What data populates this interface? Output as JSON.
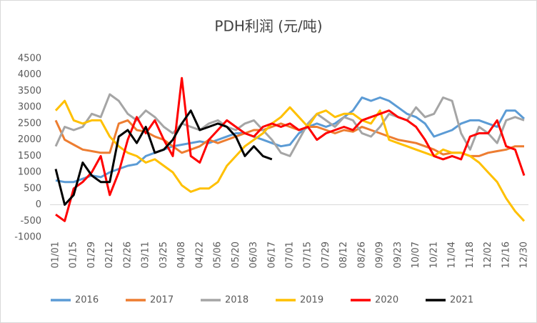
{
  "chart_data": {
    "type": "line",
    "title": "PDH利润 (元/吨)",
    "categories": [
      "01/01",
      null,
      "01/15",
      null,
      "01/29",
      null,
      "02/12",
      null,
      "02/26",
      null,
      "03/11",
      null,
      "03/25",
      null,
      "04/08",
      null,
      "04/22",
      null,
      "05/06",
      null,
      "05/20",
      null,
      "06/03",
      null,
      "06/17",
      null,
      "07/01",
      null,
      "07/15",
      null,
      "07/29",
      null,
      "08/12",
      null,
      "08/26",
      null,
      "09/09",
      null,
      "09/23",
      null,
      "10/07",
      null,
      "10/21",
      null,
      "11/04",
      null,
      "11/18",
      null,
      "12/02",
      null,
      "12/16",
      null,
      "12/30"
    ],
    "series": [
      {
        "name": "2016",
        "color": "#5b9bd5",
        "values": [
          750,
          700,
          700,
          800,
          900,
          850,
          1000,
          1100,
          1200,
          1250,
          1500,
          1600,
          1700,
          1800,
          1850,
          1900,
          1950,
          1900,
          2000,
          2100,
          2200,
          2200,
          2100,
          2000,
          1900,
          1800,
          1850,
          2200,
          2400,
          2500,
          2400,
          2500,
          2700,
          2900,
          3300,
          3200,
          3300,
          3200,
          3000,
          2800,
          2700,
          2500,
          2100,
          2200,
          2300,
          2500,
          2600,
          2600,
          2500,
          2400,
          2900,
          2900,
          2650
        ]
      },
      {
        "name": "2017",
        "color": "#ed7d31",
        "values": [
          2600,
          2000,
          1850,
          1700,
          1650,
          1600,
          1600,
          2500,
          2600,
          2300,
          2250,
          2100,
          2000,
          1800,
          1600,
          1700,
          1800,
          2000,
          1900,
          2000,
          2100,
          2200,
          2300,
          2300,
          2400,
          2500,
          2400,
          2300,
          2400,
          2400,
          2300,
          2200,
          2300,
          2250,
          2400,
          2300,
          2200,
          2100,
          2000,
          1950,
          1900,
          1800,
          1700,
          1550,
          1600,
          1600,
          1500,
          1500,
          1600,
          1650,
          1700,
          1800,
          1800
        ]
      },
      {
        "name": "2018",
        "color": "#a5a5a5",
        "values": [
          1800,
          2400,
          2300,
          2400,
          2800,
          2700,
          3400,
          3200,
          2800,
          2600,
          2900,
          2700,
          2400,
          2200,
          2500,
          2400,
          2300,
          2500,
          2600,
          2400,
          2300,
          2500,
          2600,
          2300,
          2000,
          1600,
          1500,
          2000,
          2500,
          2800,
          2600,
          2400,
          2700,
          2600,
          2200,
          2100,
          2400,
          2800,
          2700,
          2600,
          3000,
          2700,
          2800,
          3300,
          3200,
          2200,
          1700,
          2400,
          2200,
          1900,
          2600,
          2700,
          2600
        ]
      },
      {
        "name": "2019",
        "color": "#ffc000",
        "values": [
          2900,
          3200,
          2600,
          2500,
          2600,
          2600,
          2100,
          1800,
          1600,
          1500,
          1300,
          1400,
          1200,
          1000,
          600,
          400,
          500,
          500,
          700,
          1200,
          1500,
          1800,
          2000,
          2200,
          2500,
          2700,
          3000,
          2700,
          2400,
          2800,
          2900,
          2700,
          2800,
          2800,
          2600,
          2500,
          2900,
          2000,
          1900,
          1800,
          1700,
          1600,
          1500,
          1700,
          1600,
          1600,
          1500,
          1300,
          1000,
          700,
          200,
          -200,
          -500
        ]
      },
      {
        "name": "2020",
        "color": "#ff0000",
        "values": [
          -300,
          -500,
          500,
          700,
          1000,
          1500,
          300,
          1000,
          2000,
          2700,
          2200,
          2600,
          2000,
          1500,
          3900,
          1500,
          1300,
          2000,
          2300,
          2600,
          2400,
          2200,
          2100,
          2400,
          2500,
          2400,
          2500,
          2300,
          2400,
          2000,
          2200,
          2300,
          2400,
          2300,
          2600,
          2700,
          2800,
          2900,
          2700,
          2600,
          2400,
          2000,
          1500,
          1400,
          1500,
          1400,
          2100,
          2200,
          2200,
          2600,
          1800,
          1700,
          900
        ]
      },
      {
        "name": "2021",
        "color": "#000000",
        "values": [
          1100,
          0,
          300,
          1300,
          900,
          700,
          700,
          2100,
          2300,
          1900,
          2400,
          1600,
          1700,
          2000,
          2500,
          2900,
          2300,
          2400,
          2500,
          2400,
          2100,
          1500,
          1800,
          1500,
          1400,
          null,
          null,
          null,
          null,
          null,
          null,
          null,
          null,
          null,
          null,
          null,
          null,
          null,
          null,
          null,
          null,
          null,
          null,
          null,
          null,
          null,
          null,
          null,
          null,
          null,
          null,
          null,
          null
        ]
      }
    ],
    "ylim": [
      -1000,
      4500
    ],
    "yticks": [
      -1000,
      -500,
      0,
      500,
      1000,
      1500,
      2000,
      2500,
      3000,
      3500,
      4000,
      4500
    ],
    "grid": false,
    "legend": "bottom"
  }
}
